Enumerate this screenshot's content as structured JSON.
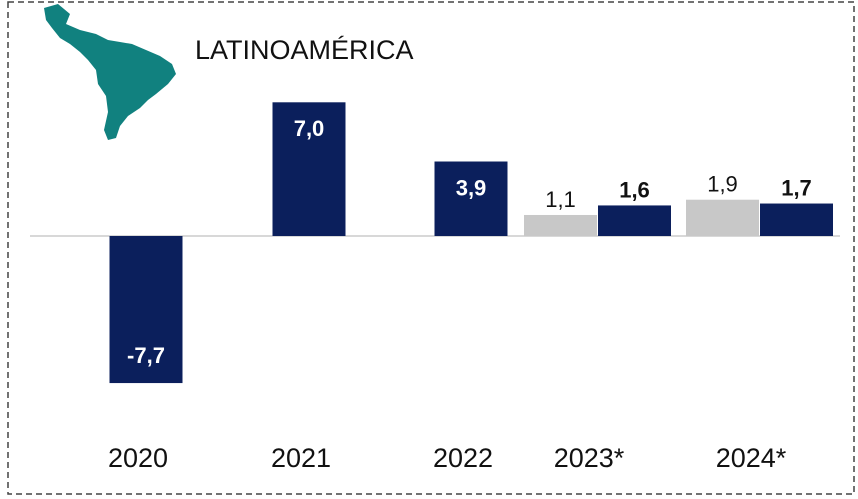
{
  "chart_data": {
    "type": "bar",
    "title": "LATINOAMÉRICA",
    "categories": [
      "2020",
      "2021",
      "2022",
      "2023*",
      "2024*"
    ],
    "series": [
      {
        "color": "#c8c8c8",
        "values": [
          null,
          null,
          null,
          1.1,
          1.9
        ],
        "value_labels": [
          null,
          null,
          null,
          "1,1",
          "1,9"
        ]
      },
      {
        "color": "#0b1f5c",
        "values": [
          -7.7,
          7.0,
          3.9,
          1.6,
          1.7
        ],
        "value_labels": [
          "-7,7",
          "7,0",
          "3,9",
          "1,6",
          "1,7"
        ]
      }
    ],
    "ylim": [
      -10,
      10
    ]
  }
}
